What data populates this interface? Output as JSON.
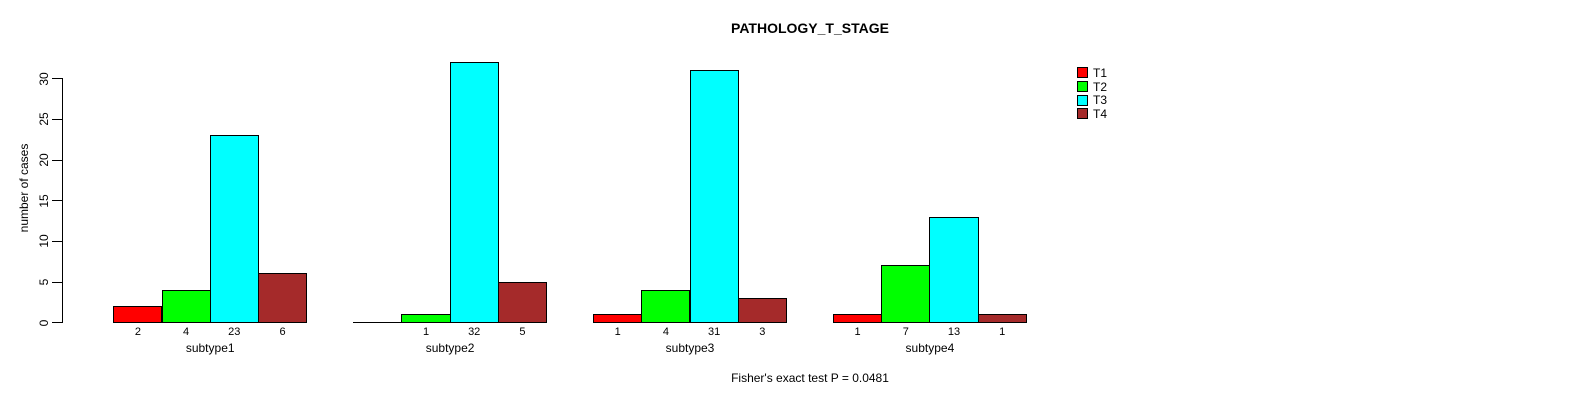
{
  "title": "PATHOLOGY_T_STAGE",
  "caption": "Fisher's exact test P = 0.0481",
  "chart_data": {
    "type": "bar",
    "title": "PATHOLOGY_T_STAGE",
    "xlabel": "",
    "ylabel": "number of cases",
    "categories": [
      "subtype1",
      "subtype2",
      "subtype3",
      "subtype4"
    ],
    "series": [
      {
        "name": "T1",
        "color": "#FF0000",
        "values": [
          2,
          0,
          1,
          1
        ]
      },
      {
        "name": "T2",
        "color": "#00FF00",
        "values": [
          4,
          1,
          4,
          7
        ]
      },
      {
        "name": "T3",
        "color": "#00FFFF",
        "values": [
          23,
          32,
          31,
          13
        ]
      },
      {
        "name": "T4",
        "color": "#A52A2A",
        "values": [
          6,
          5,
          3,
          1
        ]
      }
    ],
    "bar_value_labels": [
      [
        "2",
        "4",
        "23",
        "6"
      ],
      [
        "",
        "1",
        "32",
        "5"
      ],
      [
        "1",
        "4",
        "31",
        "3"
      ],
      [
        "1",
        "7",
        "13",
        "1"
      ]
    ],
    "yticks": [
      0,
      5,
      10,
      15,
      20,
      25,
      30
    ],
    "ylim": [
      0,
      32
    ],
    "grid": false,
    "legend": {
      "position": "top-right",
      "entries": [
        "T1",
        "T2",
        "T3",
        "T4"
      ]
    },
    "annotation_below": "Fisher's exact test P = 0.0481"
  }
}
